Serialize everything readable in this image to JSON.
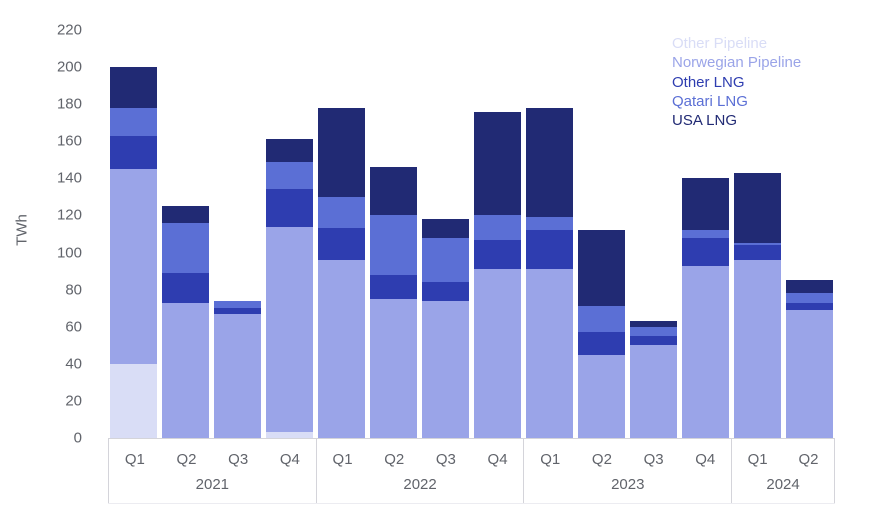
{
  "chart_data": {
    "type": "bar",
    "stacked": true,
    "ylabel": "TWh",
    "ylim": [
      0,
      220
    ],
    "y_ticks": [
      0,
      20,
      40,
      60,
      80,
      100,
      120,
      140,
      160,
      180,
      200,
      220
    ],
    "grid": false,
    "legend_position": "top-right",
    "x_groups": [
      {
        "year": "2021",
        "quarters": [
          "Q1",
          "Q2",
          "Q3",
          "Q4"
        ]
      },
      {
        "year": "2022",
        "quarters": [
          "Q1",
          "Q2",
          "Q3",
          "Q4"
        ]
      },
      {
        "year": "2023",
        "quarters": [
          "Q1",
          "Q2",
          "Q3",
          "Q4"
        ]
      },
      {
        "year": "2024",
        "quarters": [
          "Q1",
          "Q2"
        ]
      }
    ],
    "categories": [
      "2021 Q1",
      "2021 Q2",
      "2021 Q3",
      "2021 Q4",
      "2022 Q1",
      "2022 Q2",
      "2022 Q3",
      "2022 Q4",
      "2023 Q1",
      "2023 Q2",
      "2023 Q3",
      "2023 Q4",
      "2024 Q1",
      "2024 Q2"
    ],
    "series": [
      {
        "name": "Other Pipeline",
        "color": "#d9ddf6",
        "values": [
          40,
          0,
          0,
          3,
          0,
          0,
          0,
          0,
          0,
          0,
          0,
          0,
          0,
          0
        ]
      },
      {
        "name": "Norwegian Pipeline",
        "color": "#9aa4e8",
        "values": [
          105,
          73,
          67,
          111,
          96,
          75,
          74,
          91,
          91,
          45,
          50,
          93,
          96,
          69
        ]
      },
      {
        "name": "Other LNG",
        "color": "#2e3db0",
        "values": [
          18,
          16,
          3,
          20,
          17,
          13,
          10,
          16,
          21,
          12,
          5,
          15,
          8,
          4
        ]
      },
      {
        "name": "Qatari LNG",
        "color": "#5b6fd5",
        "values": [
          15,
          27,
          4,
          15,
          17,
          32,
          24,
          13,
          7,
          14,
          5,
          4,
          1,
          5
        ]
      },
      {
        "name": "USA LNG",
        "color": "#212a74",
        "values": [
          22,
          9,
          0,
          12,
          48,
          26,
          10,
          56,
          59,
          41,
          3,
          28,
          38,
          7
        ]
      }
    ]
  }
}
